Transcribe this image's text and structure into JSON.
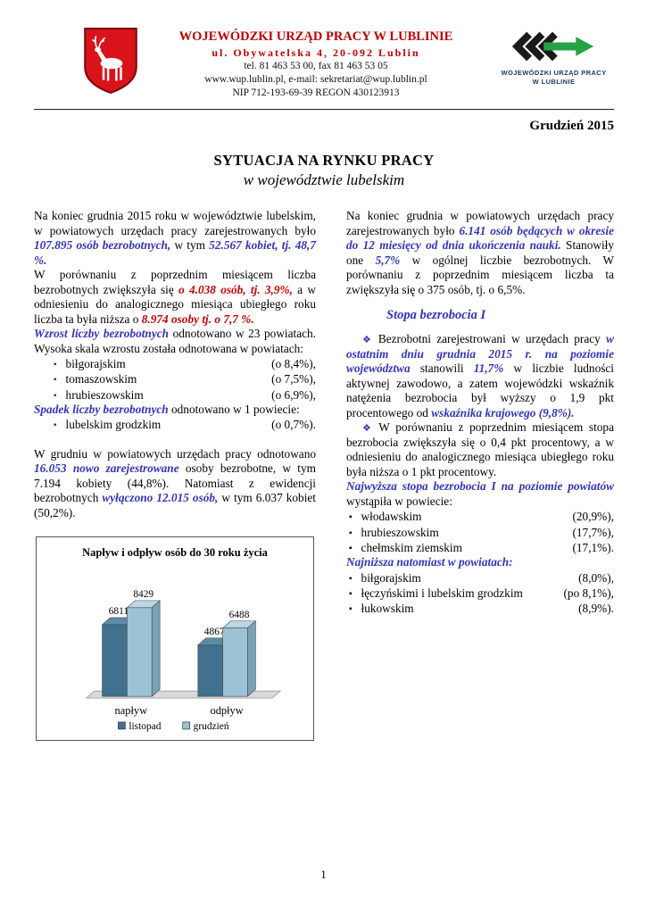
{
  "colors": {
    "accent_blue": "#3333BF",
    "accent_red": "#CC0000",
    "header_red": "#C00000",
    "crest_red": "#DA121A",
    "logo_green": "#27A243",
    "logo_navy": "#1F3864",
    "logo_black": "#1A1A1A"
  },
  "icons": {
    "diamond": "❖",
    "square_bullet": "▪"
  },
  "header": {
    "org_name": "WOJEWÓDZKI URZĄD PRACY W LUBLINIE",
    "address": "ul. Obywatelska 4, 20-092 Lublin",
    "phone": "tel. 81 463 53 00, fax 81 463 53 05",
    "web": "www.wup.lublin.pl, e-mail: sekretariat@wup.lublin.pl",
    "nip": "NIP 712-193-69-39  REGON 430123913",
    "logo_line1": "WOJEWÓDZKI URZĄD PRACY",
    "logo_line2": "W LUBLINIE",
    "date": "Grudzień 2015"
  },
  "title": {
    "line1": "SYTUACJA NA RYNKU PRACY",
    "line2": "w województwie lubelskim"
  },
  "left": {
    "p1": [
      {
        "t": "Na koniec grudnia 2015 roku w województwie lubelskim, w powiatowych urzędach pracy zarejestrowanych było "
      },
      {
        "t": "107.895 osób bezrobotnych,",
        "s": "blue-bi"
      },
      {
        "t": " w tym "
      },
      {
        "t": "52.567 kobiet, tj. 48,7 %.",
        "s": "blue-bi"
      }
    ],
    "p2": [
      {
        "t": "W porównaniu z poprzednim miesiącem liczba bezrobotnych zwiększyła się "
      },
      {
        "t": "o 4.038 osób, tj. 3,9%,",
        "s": "red-bi"
      },
      {
        "t": " a w odniesieniu do analogicznego miesiąca ubiegłego roku liczba ta była niższa o "
      },
      {
        "t": "8.974 osoby tj. o 7,7 %.",
        "s": "red-bi"
      }
    ],
    "p3": [
      {
        "t": "Wzrost liczby bezrobotnych",
        "s": "blue-bi"
      },
      {
        "t": " odnotowano w 23 powiatach. Wysoka skala wzrostu została odnotowana w powiatach:"
      }
    ],
    "growth_list": [
      {
        "label": "biłgorajskim",
        "value": "(o 8,4%),"
      },
      {
        "label": "tomaszowskim",
        "value": "(o 7,5%),"
      },
      {
        "label": "hrubieszowskim",
        "value": "(o 6,9%),"
      }
    ],
    "p4": [
      {
        "t": "Spadek liczby bezrobotnych",
        "s": "blue-bi"
      },
      {
        "t": " odnotowano w 1 powiecie:"
      }
    ],
    "decline_list": [
      {
        "label": "lubelskim grodzkim",
        "value": "(o 0,7%)."
      }
    ],
    "p5": [
      {
        "t": "W grudniu w powiatowych urzędach pracy odnotowano "
      },
      {
        "t": "16.053",
        "s": "blue-bi"
      },
      {
        "t": " "
      },
      {
        "t": "nowo zarejestrowane",
        "s": "blue-bi"
      },
      {
        "t": " osoby bezrobotne, w tym 7.194 kobiety (44,8%). Natomiast z ewidencji bezrobotnych "
      },
      {
        "t": "wyłączono 12.015 osób,",
        "s": "blue-bi"
      },
      {
        "t": " w tym 6.037 kobiet (50,2%)."
      }
    ]
  },
  "right": {
    "p1": [
      {
        "t": "Na koniec grudnia w powiatowych urzędach pracy zarejestrowanych było "
      },
      {
        "t": "6.141 osób będących w okresie do 12 miesięcy od dnia ukończenia nauki.",
        "s": "blue-bi"
      },
      {
        "t": " Stanowiły one "
      },
      {
        "t": "5,7%",
        "s": "blue-bi"
      },
      {
        "t": " w ogólnej liczbie bezrobotnych. W porównaniu z poprzednim miesiącem liczba ta zwiększyła się o 375 osób, tj. o 6,5%."
      }
    ],
    "heading": "Stopa bezrobocia I",
    "p2": [
      {
        "t": "Bezrobotni zarejestrowani w urzędach pracy "
      },
      {
        "t": "w ostatnim dniu grudnia 2015 r. na poziomie województwa",
        "s": "blue-bi"
      },
      {
        "t": " stanowili "
      },
      {
        "t": "11,7%",
        "s": "blue-bi"
      },
      {
        "t": " w liczbie ludności aktywnej zawodowo, a zatem wojewódzki wskaźnik natężenia bezrobocia był wyższy o 1,9 pkt procentowego od "
      },
      {
        "t": "wskaźnika krajowego (9,8%).",
        "s": "blue-bi"
      }
    ],
    "p3": [
      {
        "t": "W porównaniu z poprzednim miesiącem stopa bezrobocia zwiększyła się o 0,4 pkt procentowy, a w odniesieniu do analogicznego miesiąca ubiegłego roku była niższa o 1 pkt procentowy."
      }
    ],
    "p4": [
      {
        "t": "Najwyższa stopa bezrobocia I na poziomie powiatów",
        "s": "blue-bi"
      },
      {
        "t": " wystąpiła w powiecie:"
      }
    ],
    "highest_list": [
      {
        "label": "włodawskim",
        "value": "(20,9%),"
      },
      {
        "label": "hrubieszowskim",
        "value": "(17,7%),"
      },
      {
        "label": "chełmskim ziemskim",
        "value": "(17,1%)."
      }
    ],
    "p5": [
      {
        "t": "Najniższa natomiast w powiatach:",
        "s": "blue-bi"
      }
    ],
    "lowest_list": [
      {
        "label": "biłgorajskim",
        "value": "(8,0%),"
      },
      {
        "label": "łęczyńskimi i lubelskim grodzkim",
        "value": "(po 8,1%),"
      },
      {
        "label": "łukowskim",
        "value": "(8,9%)."
      }
    ]
  },
  "chart_data": {
    "type": "bar",
    "style": "3d",
    "title": "Napływ i odpływ osób do 30 roku życia",
    "categories": [
      "napływ",
      "odpływ"
    ],
    "series": [
      {
        "name": "listopad",
        "values": [
          6811,
          4867
        ],
        "color": "#41718F",
        "color_light": "#5E8BA6",
        "color_dark": "#2E5570"
      },
      {
        "name": "grudzień",
        "values": [
          8429,
          6488
        ],
        "color": "#9CC3D5",
        "color_light": "#B9D7E4",
        "color_dark": "#76A3B8"
      }
    ],
    "ylim": [
      0,
      9000
    ],
    "grid": false,
    "legend_position": "bottom"
  },
  "footer": {
    "page_number": "1"
  }
}
